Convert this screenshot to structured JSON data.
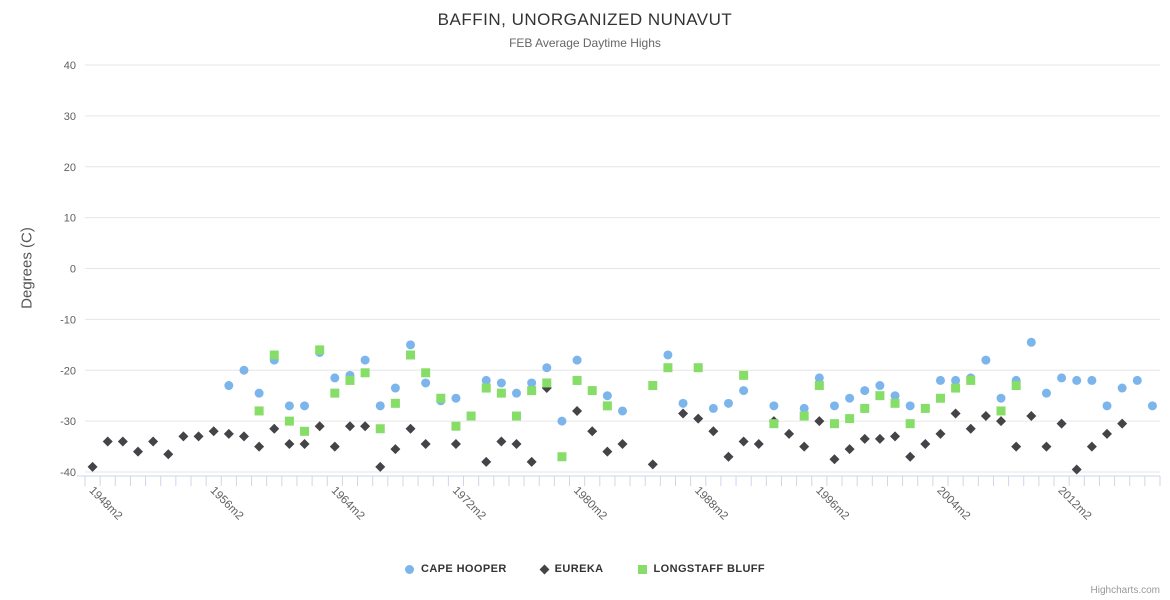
{
  "title": "BAFFIN, UNORGANIZED NUNAVUT",
  "subtitle": "FEB Average Daytime Highs",
  "credit": "Highcharts.com",
  "chart_data": {
    "type": "scatter",
    "title": "BAFFIN, UNORGANIZED NUNAVUT",
    "subtitle": "FEB Average Daytime Highs",
    "y_axis": {
      "title": "Degrees (C)",
      "min": -40,
      "max": 40,
      "tick_interval": 10
    },
    "x_axis": {
      "labels": [
        "1948m2",
        "1956m2",
        "1964m2",
        "1972m2",
        "1980m2",
        "1988m2",
        "1996m2",
        "2004m2",
        "2012m2"
      ],
      "label_suffix": "m2",
      "year_start": 1948,
      "year_end": 2018
    },
    "grid": "horizontal",
    "legend_position": "bottom",
    "series": [
      {
        "name": "CAPE HOOPER",
        "color": "#7cb5ec",
        "marker": "circle",
        "points": [
          [
            1957,
            -23
          ],
          [
            1958,
            -20
          ],
          [
            1959,
            -24.5
          ],
          [
            1960,
            -18
          ],
          [
            1961,
            -27
          ],
          [
            1962,
            -27
          ],
          [
            1963,
            -16.5
          ],
          [
            1964,
            -21.5
          ],
          [
            1965,
            -21
          ],
          [
            1966,
            -18
          ],
          [
            1967,
            -27
          ],
          [
            1968,
            -23.5
          ],
          [
            1969,
            -15
          ],
          [
            1970,
            -22.5
          ],
          [
            1971,
            -26
          ],
          [
            1972,
            -25.5
          ],
          [
            1974,
            -22
          ],
          [
            1975,
            -22.5
          ],
          [
            1976,
            -24.5
          ],
          [
            1977,
            -22.5
          ],
          [
            1978,
            -19.5
          ],
          [
            1979,
            -30
          ],
          [
            1980,
            -18
          ],
          [
            1982,
            -25
          ],
          [
            1983,
            -28
          ],
          [
            1986,
            -17
          ],
          [
            1987,
            -26.5
          ],
          [
            1989,
            -27.5
          ],
          [
            1990,
            -26.5
          ],
          [
            1991,
            -24
          ],
          [
            1993,
            -27
          ],
          [
            1995,
            -27.5
          ],
          [
            1996,
            -21.5
          ],
          [
            1997,
            -27
          ],
          [
            1998,
            -25.5
          ],
          [
            1999,
            -24
          ],
          [
            2000,
            -23
          ],
          [
            2001,
            -25
          ],
          [
            2002,
            -27
          ],
          [
            2004,
            -22
          ],
          [
            2005,
            -22
          ],
          [
            2006,
            -21.5
          ],
          [
            2007,
            -18
          ],
          [
            2008,
            -25.5
          ],
          [
            2009,
            -22
          ],
          [
            2010,
            -14.5
          ],
          [
            2011,
            -24.5
          ],
          [
            2012,
            -21.5
          ],
          [
            2013,
            -22
          ],
          [
            2014,
            -22
          ],
          [
            2015,
            -27
          ],
          [
            2016,
            -23.5
          ],
          [
            2017,
            -22
          ],
          [
            2018,
            -27
          ]
        ]
      },
      {
        "name": "EUREKA",
        "color": "#434348",
        "marker": "diamond",
        "points": [
          [
            1948,
            -39
          ],
          [
            1949,
            -34
          ],
          [
            1950,
            -34
          ],
          [
            1951,
            -36
          ],
          [
            1952,
            -34
          ],
          [
            1953,
            -36.5
          ],
          [
            1954,
            -33
          ],
          [
            1955,
            -33
          ],
          [
            1956,
            -32
          ],
          [
            1957,
            -32.5
          ],
          [
            1958,
            -33
          ],
          [
            1959,
            -35
          ],
          [
            1960,
            -31.5
          ],
          [
            1961,
            -34.5
          ],
          [
            1962,
            -34.5
          ],
          [
            1963,
            -31
          ],
          [
            1964,
            -35
          ],
          [
            1965,
            -31
          ],
          [
            1966,
            -31
          ],
          [
            1967,
            -39
          ],
          [
            1968,
            -35.5
          ],
          [
            1969,
            -31.5
          ],
          [
            1970,
            -34.5
          ],
          [
            1972,
            -34.5
          ],
          [
            1974,
            -38
          ],
          [
            1975,
            -34
          ],
          [
            1976,
            -34.5
          ],
          [
            1977,
            -38
          ],
          [
            1978,
            -23.5
          ],
          [
            1980,
            -28
          ],
          [
            1981,
            -32
          ],
          [
            1982,
            -36
          ],
          [
            1983,
            -34.5
          ],
          [
            1985,
            -38.5
          ],
          [
            1987,
            -28.5
          ],
          [
            1988,
            -29.5
          ],
          [
            1989,
            -32
          ],
          [
            1990,
            -37
          ],
          [
            1991,
            -34
          ],
          [
            1992,
            -34.5
          ],
          [
            1993,
            -30
          ],
          [
            1994,
            -32.5
          ],
          [
            1995,
            -35
          ],
          [
            1996,
            -30
          ],
          [
            1997,
            -37.5
          ],
          [
            1998,
            -35.5
          ],
          [
            1999,
            -33.5
          ],
          [
            2000,
            -33.5
          ],
          [
            2001,
            -33
          ],
          [
            2002,
            -37
          ],
          [
            2003,
            -34.5
          ],
          [
            2004,
            -32.5
          ],
          [
            2005,
            -28.5
          ],
          [
            2006,
            -31.5
          ],
          [
            2007,
            -29
          ],
          [
            2008,
            -30
          ],
          [
            2009,
            -35
          ],
          [
            2010,
            -29
          ],
          [
            2011,
            -35
          ],
          [
            2012,
            -30.5
          ],
          [
            2013,
            -39.5
          ],
          [
            2014,
            -35
          ],
          [
            2015,
            -32.5
          ],
          [
            2016,
            -30.5
          ]
        ]
      },
      {
        "name": "LONGSTAFF BLUFF",
        "color": "#86dd68",
        "marker": "square",
        "points": [
          [
            1959,
            -28
          ],
          [
            1960,
            -17
          ],
          [
            1961,
            -30
          ],
          [
            1962,
            -32
          ],
          [
            1963,
            -16
          ],
          [
            1964,
            -24.5
          ],
          [
            1965,
            -22
          ],
          [
            1966,
            -20.5
          ],
          [
            1967,
            -31.5
          ],
          [
            1968,
            -26.5
          ],
          [
            1969,
            -17
          ],
          [
            1970,
            -20.5
          ],
          [
            1971,
            -25.5
          ],
          [
            1972,
            -31
          ],
          [
            1973,
            -29
          ],
          [
            1974,
            -23.5
          ],
          [
            1975,
            -24.5
          ],
          [
            1976,
            -29
          ],
          [
            1977,
            -24
          ],
          [
            1978,
            -22.5
          ],
          [
            1979,
            -37
          ],
          [
            1980,
            -22
          ],
          [
            1981,
            -24
          ],
          [
            1982,
            -27
          ],
          [
            1985,
            -23
          ],
          [
            1986,
            -19.5
          ],
          [
            1988,
            -19.5
          ],
          [
            1991,
            -21
          ],
          [
            1993,
            -30.5
          ],
          [
            1995,
            -29
          ],
          [
            1996,
            -23
          ],
          [
            1997,
            -30.5
          ],
          [
            1998,
            -29.5
          ],
          [
            1999,
            -27.5
          ],
          [
            2000,
            -25
          ],
          [
            2001,
            -26.5
          ],
          [
            2002,
            -30.5
          ],
          [
            2003,
            -27.5
          ],
          [
            2004,
            -25.5
          ],
          [
            2005,
            -23.5
          ],
          [
            2006,
            -22
          ],
          [
            2008,
            -28
          ],
          [
            2009,
            -23
          ]
        ]
      }
    ]
  }
}
